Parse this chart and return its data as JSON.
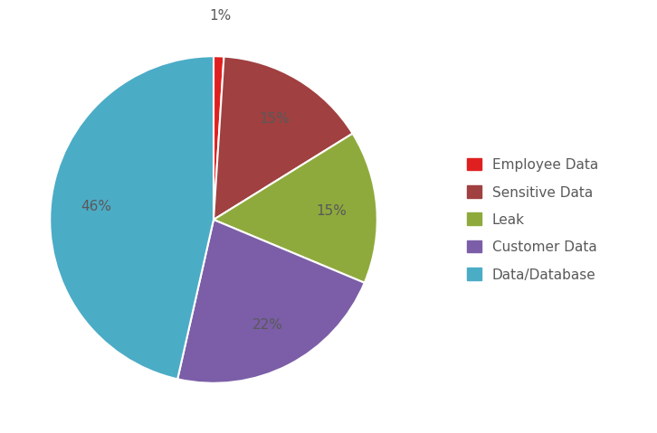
{
  "labels": [
    "Employee Data",
    "Sensitive Data",
    "Leak",
    "Customer Data",
    "Data/Database"
  ],
  "values": [
    1,
    15,
    15,
    22,
    46
  ],
  "colors": [
    "#e02020",
    "#a04040",
    "#8faa3c",
    "#7b5ea7",
    "#4bacc6"
  ],
  "legend_labels": [
    "Employee Data",
    "Sensitive Data",
    "Leak",
    "Customer Data",
    "Data/Database"
  ],
  "background_color": "#ffffff",
  "text_color": "#595959",
  "label_fontsize": 11,
  "legend_fontsize": 11,
  "startangle": 90,
  "pctdistance": 0.72
}
